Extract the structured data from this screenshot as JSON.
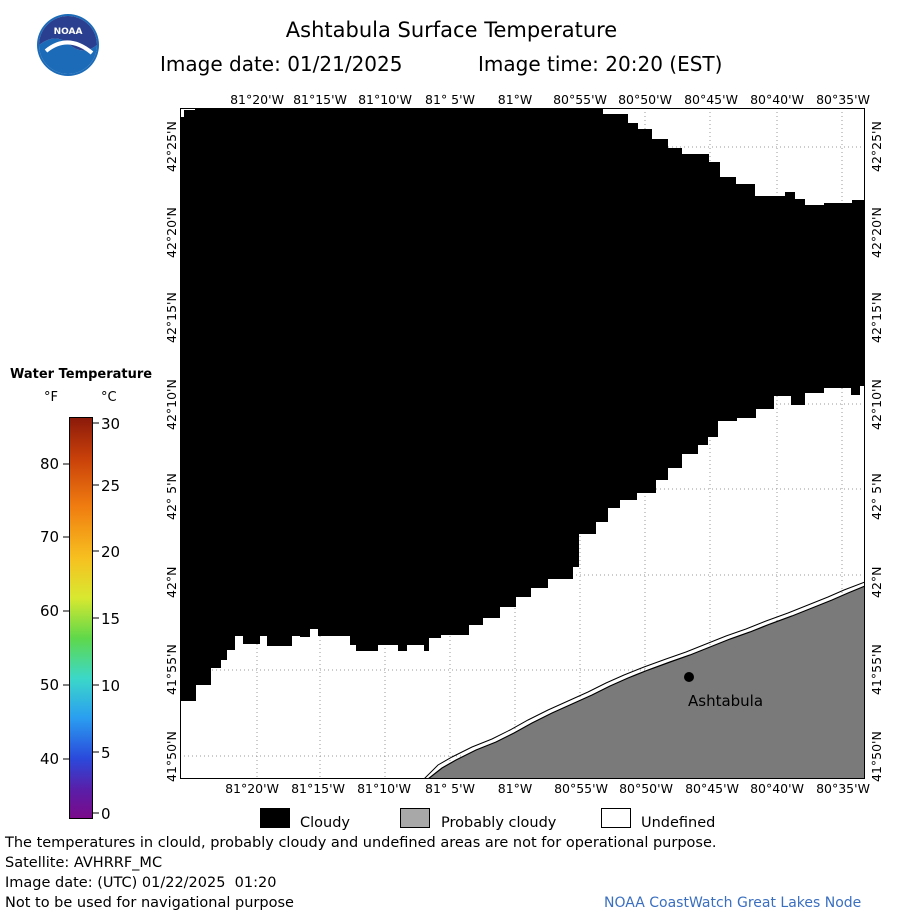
{
  "header": {
    "title": "Ashtabula Surface Temperature",
    "image_date_label": "Image date: 01/21/2025",
    "image_time_label": "Image time: 20:20 (EST)"
  },
  "logo": {
    "text": "NOAA"
  },
  "map": {
    "lon_labels": [
      "81°20'W",
      "81°15'W",
      "81°10'W",
      "81° 5'W",
      "81°W",
      "80°55'W",
      "80°50'W",
      "80°45'W",
      "80°40'W",
      "80°35'W"
    ],
    "lat_labels": [
      "42°25'N",
      "42°20'N",
      "42°15'N",
      "42°10'N",
      "42° 5'N",
      "42°N",
      "41°55'N",
      "41°50'N"
    ],
    "place_label": "Ashtabula",
    "colors": {
      "cloud": "#000000",
      "land": "#7a7a7a",
      "undefined": "#ffffff",
      "grid": "#b0b0b0"
    }
  },
  "colorbar": {
    "title": "Water Temperature",
    "unit_f": "°F",
    "unit_c": "°C",
    "f_ticks": [
      "80",
      "70",
      "60",
      "50",
      "40"
    ],
    "c_ticks": [
      "30",
      "25",
      "20",
      "15",
      "10",
      "5",
      "0"
    ]
  },
  "legend": {
    "cloudy": "Cloudy",
    "probably_cloudy": "Probably cloudy",
    "undefined": "Undefined"
  },
  "footer": {
    "note": "The temperatures in clould, probably cloudy and undefined areas are not for operational purpose.",
    "satellite": "Satellite: AVHRRF_MC",
    "utc_date": "Image date: (UTC) 01/22/2025  01:20",
    "nav_warning": "Not to be used for navigational purpose",
    "credit": "NOAA CoastWatch Great Lakes Node"
  }
}
